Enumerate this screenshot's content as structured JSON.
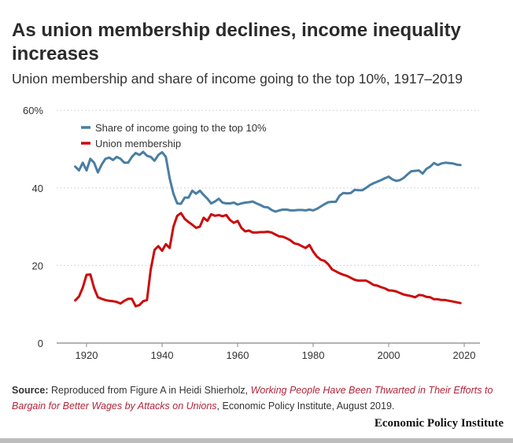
{
  "title": "As union membership declines, income inequality increases",
  "subtitle": "Union membership and share of income going to the top 10%, 1917–2019",
  "source": {
    "label": "Source:",
    "text_before": " Reproduced from Figure A in Heidi Shierholz, ",
    "link_text": "Working People Have Been Thwarted in Their Efforts to Bargain for Better Wages by Attacks on Unions",
    "text_after": ", Economic Policy Institute, August 2019."
  },
  "brand": "Economic Policy Institute",
  "colors": {
    "top10": "#4a7ea3",
    "union": "#cc0a0a",
    "grid": "#cfcfcf",
    "axis": "#9a9a9a"
  },
  "chart_data": {
    "type": "line",
    "title": "As union membership declines, income inequality increases",
    "subtitle": "Union membership and share of income going to the top 10%, 1917–2019",
    "xlabel": "",
    "ylabel": "",
    "xlim": [
      1912,
      2024
    ],
    "ylim": [
      0,
      60
    ],
    "x_ticks": [
      1920,
      1940,
      1960,
      1980,
      2000,
      2020
    ],
    "x_tick_labels": [
      "1920",
      "1940",
      "1960",
      "1980",
      "2000",
      "2020"
    ],
    "y_ticks": [
      0,
      20,
      40,
      60
    ],
    "y_tick_labels": [
      "0",
      "20",
      "40",
      "60%"
    ],
    "grid": true,
    "legend_position": "top-left",
    "series": [
      {
        "name": "Share of income going to the top 10%",
        "color_key": "top10",
        "x": [
          1917,
          1918,
          1919,
          1920,
          1921,
          1922,
          1923,
          1924,
          1925,
          1926,
          1927,
          1928,
          1929,
          1930,
          1931,
          1932,
          1933,
          1934,
          1935,
          1936,
          1937,
          1938,
          1939,
          1940,
          1941,
          1942,
          1943,
          1944,
          1945,
          1946,
          1947,
          1948,
          1949,
          1950,
          1951,
          1952,
          1953,
          1954,
          1955,
          1956,
          1957,
          1958,
          1959,
          1960,
          1961,
          1962,
          1963,
          1964,
          1965,
          1966,
          1967,
          1968,
          1969,
          1970,
          1971,
          1972,
          1973,
          1974,
          1975,
          1976,
          1977,
          1978,
          1979,
          1980,
          1981,
          1982,
          1983,
          1984,
          1985,
          1986,
          1987,
          1988,
          1989,
          1990,
          1991,
          1992,
          1993,
          1994,
          1995,
          1996,
          1997,
          1998,
          1999,
          2000,
          2001,
          2002,
          2003,
          2004,
          2005,
          2006,
          2007,
          2008,
          2009,
          2010,
          2011,
          2012,
          2013,
          2014,
          2015,
          2016,
          2017,
          2018,
          2019
        ],
        "values": [
          45.5,
          44.5,
          46.5,
          44.5,
          47.5,
          46.5,
          44.0,
          46.0,
          47.5,
          47.8,
          47.2,
          48.0,
          47.5,
          46.5,
          46.5,
          48.0,
          49.0,
          48.5,
          49.3,
          48.3,
          48.0,
          47.0,
          48.5,
          49.2,
          48.0,
          42.5,
          38.5,
          36.0,
          35.9,
          37.5,
          37.5,
          39.3,
          38.5,
          39.3,
          38.2,
          37.2,
          36.0,
          36.5,
          37.2,
          36.2,
          36.0,
          36.0,
          36.2,
          35.7,
          36.0,
          36.2,
          36.3,
          36.5,
          36.0,
          35.6,
          35.1,
          35.0,
          34.3,
          33.9,
          34.2,
          34.4,
          34.4,
          34.2,
          34.2,
          34.3,
          34.3,
          34.2,
          34.4,
          34.2,
          34.6,
          35.2,
          35.8,
          36.3,
          36.4,
          36.4,
          38.0,
          38.7,
          38.6,
          38.7,
          39.5,
          39.4,
          39.4,
          40.0,
          40.7,
          41.2,
          41.6,
          42.0,
          42.5,
          42.9,
          42.2,
          41.8,
          42.0,
          42.6,
          43.5,
          44.3,
          44.4,
          44.5,
          43.7,
          44.9,
          45.5,
          46.4,
          45.9,
          46.3,
          46.5,
          46.4,
          46.3,
          46.0,
          45.9
        ]
      },
      {
        "name": "Union membership",
        "color_key": "union",
        "x": [
          1917,
          1918,
          1919,
          1920,
          1921,
          1922,
          1923,
          1924,
          1925,
          1926,
          1927,
          1928,
          1929,
          1930,
          1931,
          1932,
          1933,
          1934,
          1935,
          1936,
          1937,
          1938,
          1939,
          1940,
          1941,
          1942,
          1943,
          1944,
          1945,
          1946,
          1947,
          1948,
          1949,
          1950,
          1951,
          1952,
          1953,
          1954,
          1955,
          1956,
          1957,
          1958,
          1959,
          1960,
          1961,
          1962,
          1963,
          1964,
          1965,
          1966,
          1967,
          1968,
          1969,
          1970,
          1971,
          1972,
          1973,
          1974,
          1975,
          1976,
          1977,
          1978,
          1979,
          1980,
          1981,
          1982,
          1983,
          1984,
          1985,
          1986,
          1987,
          1988,
          1989,
          1990,
          1991,
          1992,
          1993,
          1994,
          1995,
          1996,
          1997,
          1998,
          1999,
          2000,
          2001,
          2002,
          2003,
          2004,
          2005,
          2006,
          2007,
          2008,
          2009,
          2010,
          2011,
          2012,
          2013,
          2014,
          2015,
          2016,
          2017,
          2018,
          2019
        ],
        "values": [
          11.0,
          12.0,
          14.3,
          17.6,
          17.7,
          14.2,
          11.8,
          11.4,
          11.1,
          10.9,
          10.8,
          10.6,
          10.2,
          10.9,
          11.4,
          11.4,
          9.5,
          9.8,
          10.8,
          11.1,
          19.0,
          24.0,
          25.0,
          23.8,
          25.5,
          24.5,
          30.0,
          32.8,
          33.5,
          32.0,
          31.2,
          30.5,
          29.7,
          30.0,
          32.3,
          31.5,
          33.2,
          32.8,
          33.0,
          32.7,
          33.0,
          31.7,
          31.0,
          31.5,
          29.7,
          28.8,
          29.0,
          28.5,
          28.5,
          28.6,
          28.6,
          28.7,
          28.5,
          28.0,
          27.5,
          27.4,
          27.0,
          26.5,
          25.7,
          25.5,
          25.0,
          24.5,
          25.3,
          23.6,
          22.3,
          21.5,
          21.2,
          20.3,
          19.0,
          18.5,
          18.0,
          17.6,
          17.3,
          16.8,
          16.3,
          16.1,
          16.1,
          16.1,
          15.6,
          15.0,
          14.8,
          14.4,
          14.1,
          13.6,
          13.5,
          13.3,
          12.9,
          12.5,
          12.3,
          12.1,
          11.8,
          12.4,
          12.3,
          11.9,
          11.8,
          11.3,
          11.3,
          11.1,
          11.1,
          10.9,
          10.7,
          10.5,
          10.3
        ]
      }
    ]
  }
}
